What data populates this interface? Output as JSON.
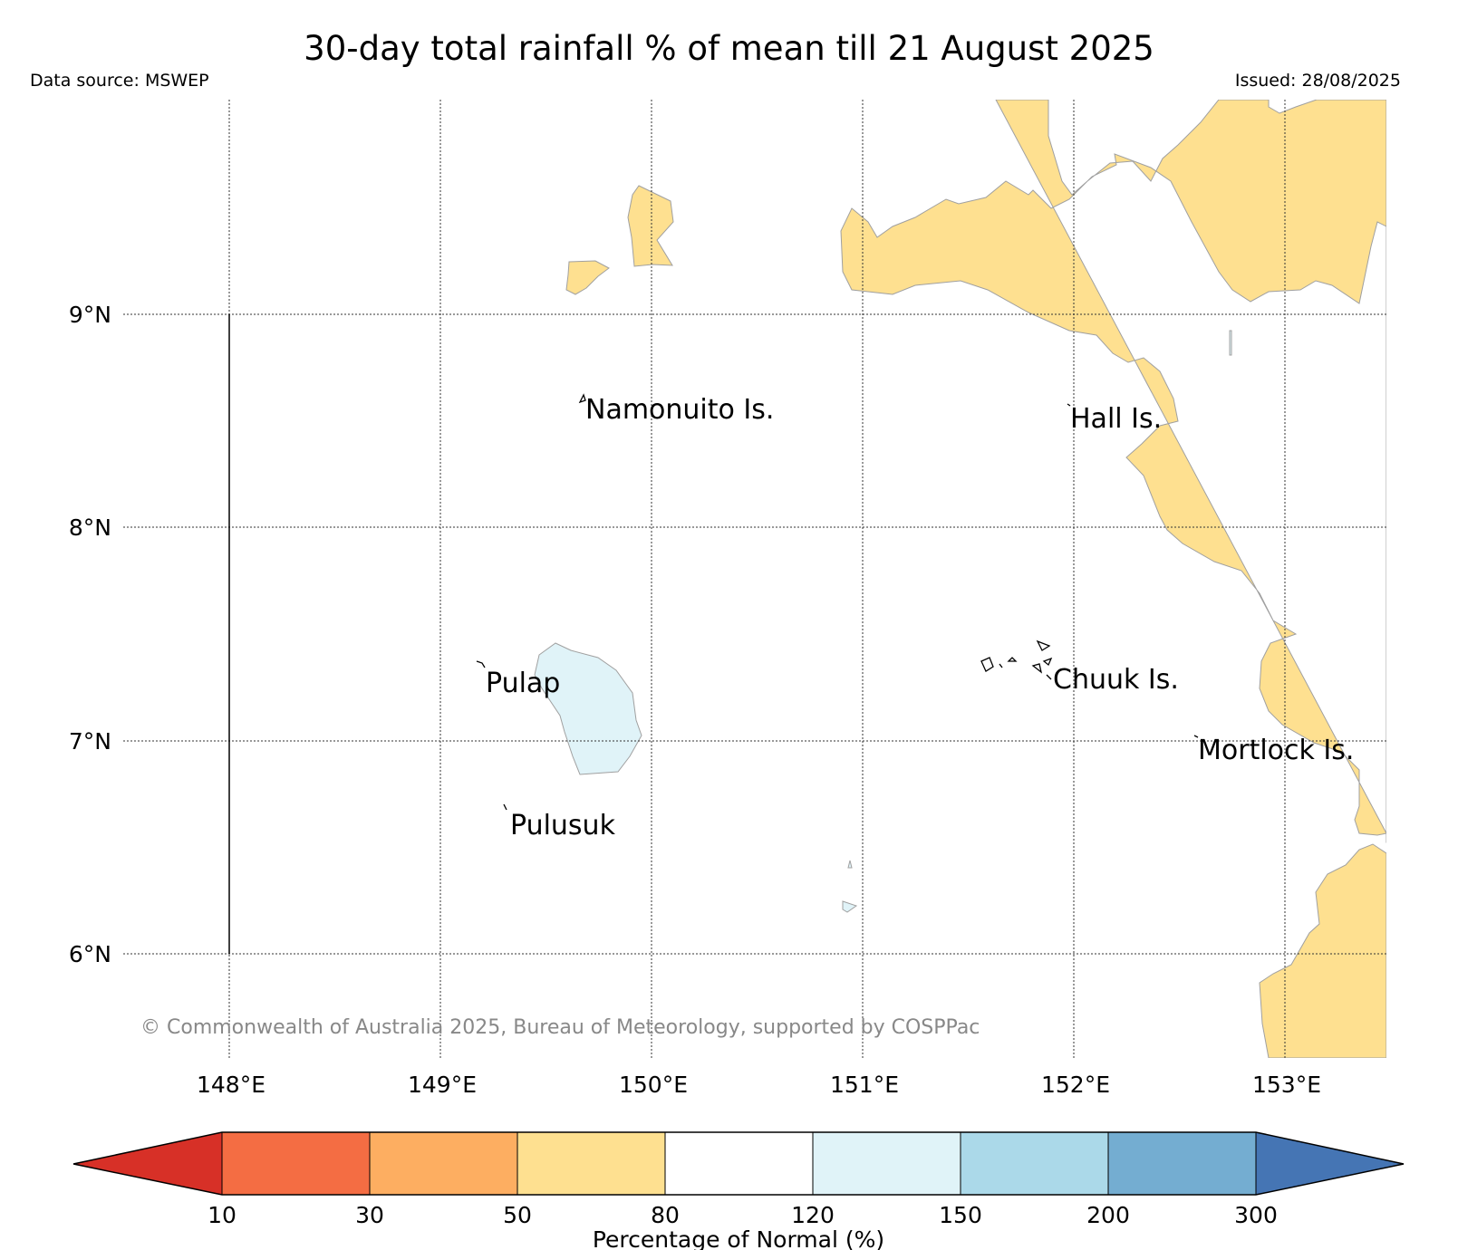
{
  "title": "30-day total rainfall % of mean till 21 August 2025",
  "source_label": "Data source: MSWEP",
  "issued_label": "Issued: 28/08/2025",
  "copyright": "© Commonwealth of Australia 2025, Bureau of Meteorology, supported by COSPPac",
  "lat_ticks": [
    "9°N",
    "8°N",
    "7°N",
    "6°N"
  ],
  "lon_ticks": [
    "148°E",
    "149°E",
    "150°E",
    "151°E",
    "152°E",
    "153°E"
  ],
  "places": {
    "namonuito": "Namonuito Is.",
    "hall": "Hall Is.",
    "pulap": "Pulap",
    "chuuk": "Chuuk Is.",
    "pulusuk": "Pulusuk",
    "mortlock": "Mortlock Is."
  },
  "colors": {
    "cat_10_30": "#f46d43",
    "cat_30_50": "#fdae61",
    "cat_50_80": "#fee090",
    "cat_80_120": "#ffffff",
    "cat_120_150": "#e0f3f8",
    "cat_150_200": "#abd9e9",
    "cat_200_300": "#74add1",
    "below_10": "#d73027",
    "above_300": "#4575b4"
  },
  "legend": {
    "title": "Percentage of Normal (%)",
    "ticks": [
      "10",
      "30",
      "50",
      "80",
      "120",
      "150",
      "200",
      "300"
    ]
  }
}
